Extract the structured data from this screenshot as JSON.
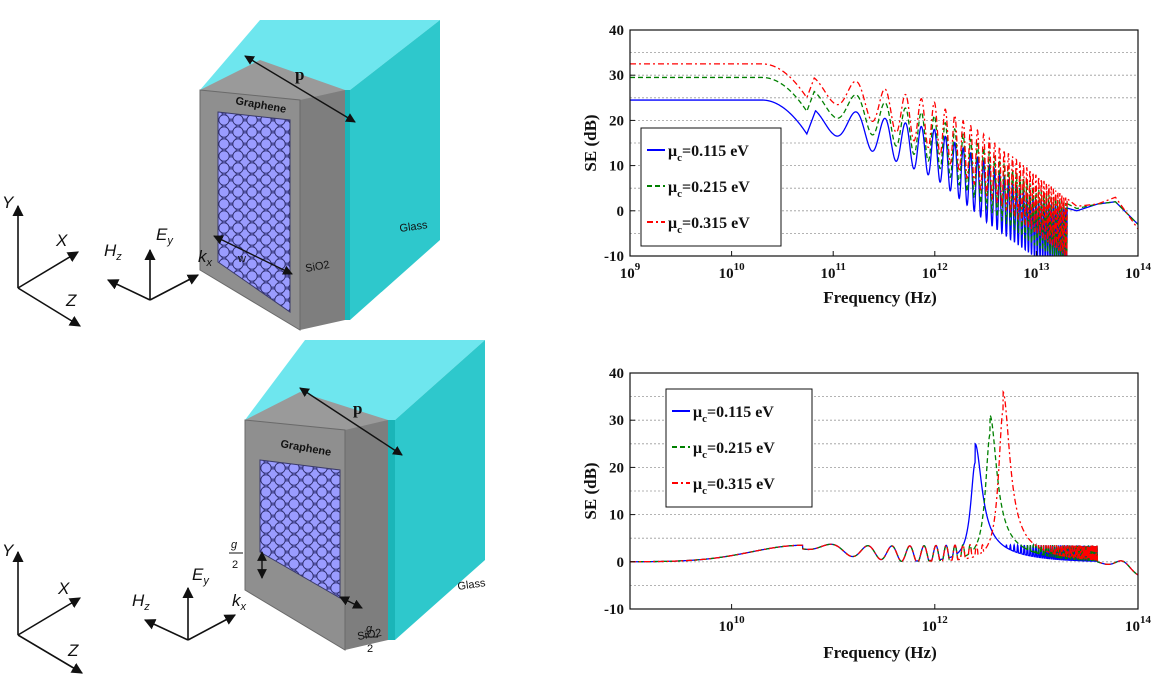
{
  "diagram_top": {
    "dim_p": "p",
    "dim_w": "w",
    "label_graphene": "Graphene",
    "label_glass": "Glass",
    "label_sio2": "SiO2",
    "coord": {
      "y": "Y",
      "x": "X",
      "z": "Z"
    },
    "field": {
      "h": "H",
      "h_sub": "z",
      "e": "E",
      "e_sub": "y",
      "k": "k",
      "k_sub": "x"
    }
  },
  "diagram_bottom": {
    "dim_p": "p",
    "gap_num": "g",
    "gap_den": "2",
    "label_graphene": "Graphene",
    "label_glass": "Glass",
    "label_sio2": "SiO2",
    "coord": {
      "y": "Y",
      "x": "X",
      "z": "Z"
    },
    "field": {
      "h": "H",
      "h_sub": "z",
      "e": "E",
      "e_sub": "y",
      "k": "k",
      "k_sub": "x"
    }
  },
  "chart_data": [
    {
      "type": "line",
      "xscale": "log",
      "xlim": [
        1000000000.0,
        100000000000000.0
      ],
      "ylim": [
        -10,
        40
      ],
      "x_ticks": [
        9,
        10,
        11,
        12,
        13,
        14
      ],
      "x_tick_base": "10",
      "y_ticks": [
        -10,
        0,
        10,
        20,
        30,
        40
      ],
      "xlabel": "Frequency (Hz)",
      "ylabel": "SE (dB)",
      "grid": "horizontal dotted",
      "legend_position": "left",
      "series": [
        {
          "name": "μ",
          "name_sub": "c",
          "name_tail": "=0.115 eV",
          "color": "#0000ff",
          "dash": "solid",
          "plateau": 24.5,
          "dip1": {
            "f": 55000000000.0,
            "se": 17
          },
          "envelope": [
            [
              100000000000.0,
              23
            ],
            [
              1000000000000.0,
              18
            ],
            [
              3000000000000.0,
              11
            ],
            [
              10000000000000.0,
              2.5
            ],
            [
              25000000000000.0,
              0
            ],
            [
              40000000000000.0,
              1.5
            ],
            [
              60000000000000.0,
              2
            ],
            [
              100000000000000.0,
              -3
            ]
          ]
        },
        {
          "name": "μ",
          "name_sub": "c",
          "name_tail": "=0.215 eV",
          "color": "#008000",
          "dash": "dashed",
          "plateau": 29.5,
          "dip1": {
            "f": 55000000000.0,
            "se": 22
          },
          "envelope": [
            [
              100000000000.0,
              27
            ],
            [
              1000000000000.0,
              21
            ],
            [
              3000000000000.0,
              14
            ],
            [
              10000000000000.0,
              5
            ],
            [
              25000000000000.0,
              0.5
            ],
            [
              40000000000000.0,
              1.5
            ],
            [
              60000000000000.0,
              2
            ],
            [
              100000000000000.0,
              -3
            ]
          ]
        },
        {
          "name": "μ",
          "name_sub": "c",
          "name_tail": "=0.315 eV",
          "color": "#ff0000",
          "dash": "dashdot",
          "plateau": 32.5,
          "dip1": {
            "f": 55000000000.0,
            "se": 25
          },
          "envelope": [
            [
              100000000000.0,
              30
            ],
            [
              1000000000000.0,
              24
            ],
            [
              3000000000000.0,
              17
            ],
            [
              10000000000000.0,
              8
            ],
            [
              25000000000000.0,
              1
            ],
            [
              40000000000000.0,
              1.5
            ],
            [
              60000000000000.0,
              3
            ],
            [
              100000000000000.0,
              -4
            ]
          ]
        }
      ]
    },
    {
      "type": "line",
      "xscale": "log",
      "xlim": [
        1000000000.0,
        100000000000000.0
      ],
      "ylim": [
        -10,
        40
      ],
      "x_ticks": [
        10,
        12,
        14
      ],
      "x_tick_base": "10",
      "y_ticks": [
        -10,
        0,
        10,
        20,
        30,
        40
      ],
      "xlabel": "Frequency (Hz)",
      "ylabel": "SE (dB)",
      "grid": "horizontal dotted",
      "legend_position": "top-left",
      "series": [
        {
          "name": "μ",
          "name_sub": "c",
          "name_tail": "=0.115 eV",
          "color": "#0000ff",
          "dash": "solid",
          "peak": {
            "f": 2500000000000.0,
            "se": 21
          }
        },
        {
          "name": "μ",
          "name_sub": "c",
          "name_tail": "=0.215 eV",
          "color": "#008000",
          "dash": "dashed",
          "peak": {
            "f": 3500000000000.0,
            "se": 27
          }
        },
        {
          "name": "μ",
          "name_sub": "c",
          "name_tail": "=0.315 eV",
          "color": "#ff0000",
          "dash": "dashdot",
          "peak": {
            "f": 4700000000000.0,
            "se": 32
          }
        }
      ]
    }
  ]
}
